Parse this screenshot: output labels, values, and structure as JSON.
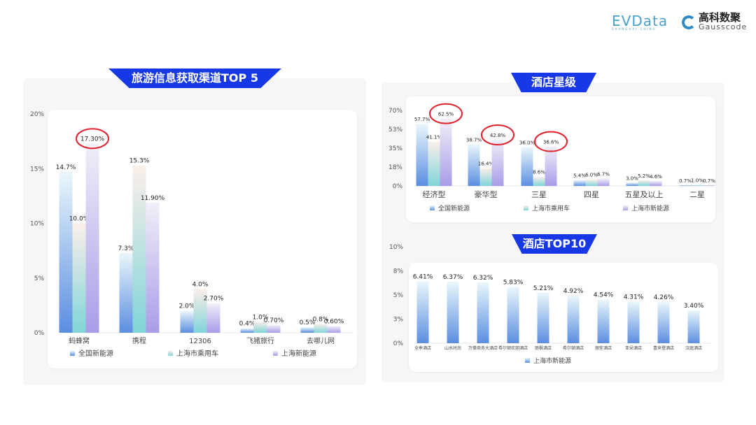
{
  "logos": {
    "evdata": {
      "text": "EVData",
      "sub": "SHANGHAI CHINA"
    },
    "gausscode": {
      "cn": "高科数聚",
      "en": "Gausscode"
    }
  },
  "colors": {
    "banner": "#1638e6",
    "series": [
      {
        "bottom": "#5b8ee0",
        "top": "#eaf7fb"
      },
      {
        "bottom": "#80d4d8",
        "top": "#fbefea"
      },
      {
        "bottom": "#a99ce8",
        "top": "#f1eff8"
      }
    ],
    "highlight": "#e0202a"
  },
  "chart_data": [
    {
      "id": "channels",
      "type": "bar",
      "title": "旅游信息获取渠道TOP 5",
      "categories": [
        "蚂蜂窝",
        "携程",
        "12306",
        "飞猪旅行",
        "去哪儿网"
      ],
      "series": [
        {
          "name": "全国新能源",
          "values": [
            14.7,
            7.3,
            2.0,
            0.4,
            0.5
          ],
          "labels": [
            "14.7%",
            "7.3%",
            "2.0%",
            "0.4%",
            "0.5%"
          ]
        },
        {
          "name": "上海市乘用车",
          "values": [
            10.0,
            15.3,
            4.0,
            1.0,
            0.8
          ],
          "labels": [
            "10.0%",
            "15.3%",
            "4.0%",
            "1.0%",
            "0.8%"
          ]
        },
        {
          "name": "上海新能源",
          "values": [
            17.3,
            11.9,
            2.7,
            0.7,
            0.6
          ],
          "labels": [
            "17.30%",
            "11.90%",
            "2.70%",
            "0.70%",
            "0.60%"
          ]
        }
      ],
      "yticks": [
        0,
        5,
        10,
        15,
        20
      ],
      "ytick_labels": [
        "0%",
        "5%",
        "10%",
        "15%",
        "20%"
      ],
      "ylim": [
        0,
        20
      ],
      "highlights": [
        [
          2,
          0
        ]
      ],
      "legend": "bottom"
    },
    {
      "id": "star",
      "type": "bar",
      "title": "酒店星级",
      "categories": [
        "经济型",
        "豪华型",
        "三星",
        "四星",
        "五星及以上",
        "二星"
      ],
      "series": [
        {
          "name": "全国新能源",
          "values": [
            57.7,
            38.7,
            36.0,
            5.4,
            3.0,
            0.7
          ],
          "labels": [
            "57.7%",
            "38.7%",
            "36.0%",
            "5.4%",
            "3.0%",
            "0.7%"
          ]
        },
        {
          "name": "上海市乘用车",
          "values": [
            41.1,
            16.4,
            8.6,
            6.0,
            5.2,
            1.0
          ],
          "labels": [
            "41.1%",
            "16.4%",
            "8.6%",
            "6.0%",
            "5.2%",
            "1.0%"
          ]
        },
        {
          "name": "上海市新能源",
          "values": [
            62.5,
            42.8,
            36.6,
            6.7,
            4.6,
            0.7
          ],
          "labels": [
            "62.5%",
            "42.8%",
            "36.6%",
            "6.7%",
            "4.6%",
            "0.7%"
          ]
        }
      ],
      "yticks": [
        0,
        17.5,
        35,
        52.5,
        70
      ],
      "ytick_labels": [
        "0%",
        "18%",
        "35%",
        "53%",
        "70%"
      ],
      "ylim": [
        0,
        70
      ],
      "highlights": [
        [
          2,
          0
        ],
        [
          2,
          1
        ],
        [
          2,
          2
        ]
      ],
      "legend": "bottom"
    },
    {
      "id": "top10",
      "type": "bar",
      "title": "酒店TOP10",
      "categories": [
        "全季酒店",
        "山水时尚",
        "万豪商务大酒店",
        "希尔顿欢朋酒店",
        "丽枫酒店",
        "希尔顿酒店",
        "丽笙酒店",
        "亚朵酒店",
        "喜来登酒店",
        "汉庭酒店"
      ],
      "series": [
        {
          "name": "上海市新能源",
          "values": [
            6.41,
            6.37,
            6.32,
            5.83,
            5.21,
            4.92,
            4.54,
            4.31,
            4.26,
            3.4
          ],
          "labels": [
            "6.41%",
            "6.37%",
            "6.32%",
            "5.83%",
            "5.21%",
            "4.92%",
            "4.54%",
            "4.31%",
            "4.26%",
            "3.40%"
          ]
        }
      ],
      "yticks": [
        0,
        2.5,
        5,
        7.5,
        10
      ],
      "ytick_labels": [
        "0%",
        "3%",
        "5%",
        "8%",
        "10%"
      ],
      "ylim": [
        0,
        10
      ],
      "highlights": [],
      "legend": "bottom"
    }
  ]
}
